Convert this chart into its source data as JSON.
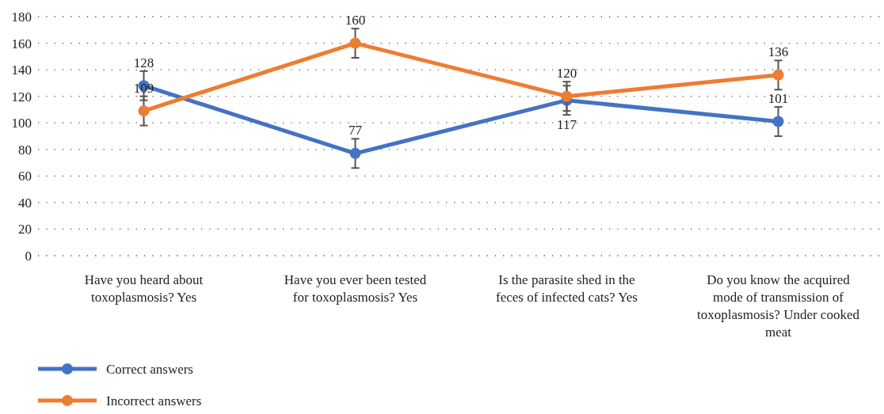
{
  "chart_data": {
    "type": "line",
    "categories": [
      "Have you heard about toxoplasmosis? Yes",
      "Have you ever been tested for toxoplasmosis? Yes",
      "Is the parasite shed in the feces of infected cats? Yes",
      "Do you know the acquired mode of transmission of toxoplasmosis? Under cooked meat"
    ],
    "series": [
      {
        "name": "Correct answers",
        "color": "#4472c4",
        "values": [
          128,
          77,
          117,
          101
        ],
        "errors": [
          11,
          11,
          11,
          11
        ]
      },
      {
        "name": "Incorrect answers",
        "color": "#ed7d31",
        "values": [
          109,
          160,
          120,
          136
        ],
        "errors": [
          11,
          11,
          11,
          11
        ]
      }
    ],
    "ylim": [
      0,
      180
    ],
    "yticks": [
      0,
      20,
      40,
      60,
      80,
      100,
      120,
      140,
      160,
      180
    ],
    "grid": "y",
    "data_labels": true,
    "marker": "circle",
    "line_style": "solid",
    "legend": "bottom left"
  }
}
